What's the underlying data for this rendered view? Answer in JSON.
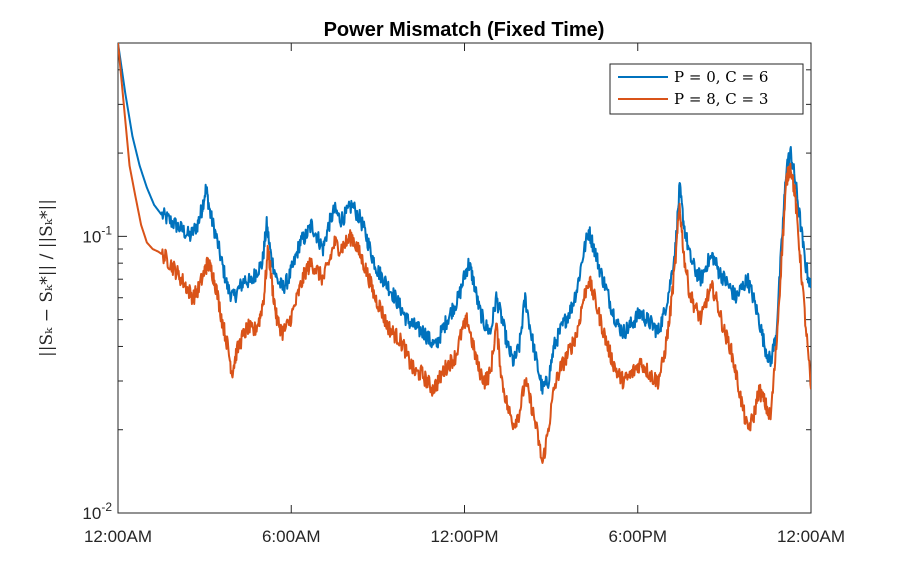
{
  "chart_data": {
    "type": "line",
    "title": "Power Mismatch (Fixed Time)",
    "xlabel": "",
    "ylabel": "||S_k − S*_k|| / ||S*_k||",
    "ylabel_display": "||Sₖ − Sₖ*|| / ||Sₖ*||",
    "yscale": "log",
    "ylim": [
      0.01,
      0.5
    ],
    "xlim": [
      0,
      24
    ],
    "x_unit": "hours",
    "x_ticks": [
      {
        "value": 0,
        "label": "12:00AM"
      },
      {
        "value": 6,
        "label": "6:00AM"
      },
      {
        "value": 12,
        "label": "12:00PM"
      },
      {
        "value": 18,
        "label": "6:00PM"
      },
      {
        "value": 24,
        "label": "12:00AM"
      }
    ],
    "y_ticks": [
      {
        "value": 0.01,
        "base": "10",
        "exp": "-2"
      },
      {
        "value": 0.1,
        "base": "10",
        "exp": "-1"
      }
    ],
    "legend_position": "top-right",
    "series": [
      {
        "name": "P = 0, C = 6",
        "color": "#0072BD",
        "points": [
          [
            0,
            0.5
          ],
          [
            0.25,
            0.33
          ],
          [
            0.5,
            0.23
          ],
          [
            0.75,
            0.18
          ],
          [
            1,
            0.15
          ],
          [
            1.25,
            0.13
          ],
          [
            1.5,
            0.12
          ],
          [
            1.75,
            0.115
          ],
          [
            2,
            0.11
          ],
          [
            2.25,
            0.105
          ],
          [
            2.5,
            0.1
          ],
          [
            2.75,
            0.11
          ],
          [
            2.9,
            0.125
          ],
          [
            3.05,
            0.15
          ],
          [
            3.2,
            0.12
          ],
          [
            3.4,
            0.1
          ],
          [
            3.6,
            0.08
          ],
          [
            3.8,
            0.065
          ],
          [
            4.0,
            0.06
          ],
          [
            4.2,
            0.065
          ],
          [
            4.4,
            0.07
          ],
          [
            4.6,
            0.068
          ],
          [
            4.8,
            0.075
          ],
          [
            5.0,
            0.08
          ],
          [
            5.15,
            0.11
          ],
          [
            5.3,
            0.085
          ],
          [
            5.5,
            0.07
          ],
          [
            5.7,
            0.065
          ],
          [
            5.9,
            0.07
          ],
          [
            6.1,
            0.08
          ],
          [
            6.3,
            0.095
          ],
          [
            6.5,
            0.1
          ],
          [
            6.7,
            0.11
          ],
          [
            6.9,
            0.1
          ],
          [
            7.1,
            0.09
          ],
          [
            7.3,
            0.11
          ],
          [
            7.5,
            0.125
          ],
          [
            7.7,
            0.115
          ],
          [
            7.9,
            0.12
          ],
          [
            8.1,
            0.13
          ],
          [
            8.4,
            0.115
          ],
          [
            8.6,
            0.1
          ],
          [
            8.8,
            0.085
          ],
          [
            9.0,
            0.075
          ],
          [
            9.2,
            0.07
          ],
          [
            9.4,
            0.065
          ],
          [
            9.6,
            0.06
          ],
          [
            9.8,
            0.055
          ],
          [
            10.0,
            0.05
          ],
          [
            10.2,
            0.048
          ],
          [
            10.4,
            0.046
          ],
          [
            10.6,
            0.045
          ],
          [
            10.8,
            0.042
          ],
          [
            11.0,
            0.04
          ],
          [
            11.2,
            0.045
          ],
          [
            11.4,
            0.05
          ],
          [
            11.6,
            0.055
          ],
          [
            11.8,
            0.06
          ],
          [
            12.0,
            0.072
          ],
          [
            12.15,
            0.08
          ],
          [
            12.3,
            0.07
          ],
          [
            12.5,
            0.055
          ],
          [
            12.7,
            0.048
          ],
          [
            12.9,
            0.045
          ],
          [
            13.1,
            0.06
          ],
          [
            13.3,
            0.05
          ],
          [
            13.5,
            0.04
          ],
          [
            13.7,
            0.035
          ],
          [
            13.9,
            0.04
          ],
          [
            14.1,
            0.06
          ],
          [
            14.3,
            0.045
          ],
          [
            14.5,
            0.035
          ],
          [
            14.7,
            0.028
          ],
          [
            14.9,
            0.03
          ],
          [
            15.1,
            0.04
          ],
          [
            15.3,
            0.045
          ],
          [
            15.5,
            0.05
          ],
          [
            15.7,
            0.055
          ],
          [
            15.9,
            0.065
          ],
          [
            16.1,
            0.085
          ],
          [
            16.3,
            0.105
          ],
          [
            16.5,
            0.09
          ],
          [
            16.7,
            0.075
          ],
          [
            16.9,
            0.065
          ],
          [
            17.1,
            0.055
          ],
          [
            17.3,
            0.048
          ],
          [
            17.5,
            0.045
          ],
          [
            17.7,
            0.047
          ],
          [
            17.9,
            0.05
          ],
          [
            18.1,
            0.053
          ],
          [
            18.3,
            0.05
          ],
          [
            18.5,
            0.048
          ],
          [
            18.7,
            0.045
          ],
          [
            18.9,
            0.052
          ],
          [
            19.1,
            0.065
          ],
          [
            19.3,
            0.09
          ],
          [
            19.45,
            0.15
          ],
          [
            19.6,
            0.11
          ],
          [
            19.8,
            0.085
          ],
          [
            20.0,
            0.075
          ],
          [
            20.2,
            0.07
          ],
          [
            20.4,
            0.08
          ],
          [
            20.6,
            0.085
          ],
          [
            20.8,
            0.075
          ],
          [
            21.0,
            0.07
          ],
          [
            21.2,
            0.065
          ],
          [
            21.4,
            0.06
          ],
          [
            21.6,
            0.065
          ],
          [
            21.8,
            0.07
          ],
          [
            22.0,
            0.06
          ],
          [
            22.2,
            0.05
          ],
          [
            22.4,
            0.04
          ],
          [
            22.6,
            0.035
          ],
          [
            22.8,
            0.045
          ],
          [
            23.0,
            0.1
          ],
          [
            23.15,
            0.18
          ],
          [
            23.3,
            0.2
          ],
          [
            23.45,
            0.16
          ],
          [
            23.6,
            0.12
          ],
          [
            23.8,
            0.08
          ],
          [
            24.0,
            0.065
          ]
        ]
      },
      {
        "name": "P = 8, C = 3",
        "color": "#D95319",
        "points": [
          [
            0,
            0.5
          ],
          [
            0.2,
            0.3
          ],
          [
            0.4,
            0.18
          ],
          [
            0.6,
            0.14
          ],
          [
            0.8,
            0.11
          ],
          [
            1.0,
            0.095
          ],
          [
            1.2,
            0.09
          ],
          [
            1.4,
            0.088
          ],
          [
            1.6,
            0.085
          ],
          [
            1.8,
            0.08
          ],
          [
            2.0,
            0.075
          ],
          [
            2.2,
            0.07
          ],
          [
            2.4,
            0.065
          ],
          [
            2.6,
            0.06
          ],
          [
            2.8,
            0.065
          ],
          [
            3.0,
            0.075
          ],
          [
            3.1,
            0.08
          ],
          [
            3.25,
            0.075
          ],
          [
            3.4,
            0.065
          ],
          [
            3.6,
            0.05
          ],
          [
            3.8,
            0.04
          ],
          [
            3.95,
            0.032
          ],
          [
            4.1,
            0.038
          ],
          [
            4.3,
            0.043
          ],
          [
            4.5,
            0.047
          ],
          [
            4.7,
            0.045
          ],
          [
            4.9,
            0.05
          ],
          [
            5.05,
            0.06
          ],
          [
            5.2,
            0.09
          ],
          [
            5.35,
            0.065
          ],
          [
            5.5,
            0.05
          ],
          [
            5.7,
            0.045
          ],
          [
            5.9,
            0.048
          ],
          [
            6.1,
            0.055
          ],
          [
            6.3,
            0.065
          ],
          [
            6.5,
            0.075
          ],
          [
            6.7,
            0.08
          ],
          [
            6.9,
            0.075
          ],
          [
            7.1,
            0.07
          ],
          [
            7.3,
            0.08
          ],
          [
            7.5,
            0.095
          ],
          [
            7.7,
            0.09
          ],
          [
            7.9,
            0.095
          ],
          [
            8.1,
            0.1
          ],
          [
            8.3,
            0.09
          ],
          [
            8.5,
            0.08
          ],
          [
            8.7,
            0.07
          ],
          [
            8.9,
            0.06
          ],
          [
            9.1,
            0.055
          ],
          [
            9.3,
            0.048
          ],
          [
            9.5,
            0.045
          ],
          [
            9.7,
            0.043
          ],
          [
            9.9,
            0.04
          ],
          [
            10.1,
            0.035
          ],
          [
            10.3,
            0.032
          ],
          [
            10.5,
            0.032
          ],
          [
            10.7,
            0.03
          ],
          [
            10.9,
            0.028
          ],
          [
            11.1,
            0.03
          ],
          [
            11.3,
            0.033
          ],
          [
            11.5,
            0.035
          ],
          [
            11.7,
            0.037
          ],
          [
            11.9,
            0.045
          ],
          [
            12.1,
            0.05
          ],
          [
            12.3,
            0.04
          ],
          [
            12.5,
            0.033
          ],
          [
            12.7,
            0.03
          ],
          [
            12.9,
            0.032
          ],
          [
            13.1,
            0.048
          ],
          [
            13.3,
            0.03
          ],
          [
            13.5,
            0.024
          ],
          [
            13.7,
            0.021
          ],
          [
            13.9,
            0.023
          ],
          [
            14.1,
            0.03
          ],
          [
            14.3,
            0.025
          ],
          [
            14.5,
            0.02
          ],
          [
            14.7,
            0.015
          ],
          [
            14.9,
            0.02
          ],
          [
            15.1,
            0.028
          ],
          [
            15.3,
            0.033
          ],
          [
            15.5,
            0.036
          ],
          [
            15.7,
            0.04
          ],
          [
            15.9,
            0.045
          ],
          [
            16.1,
            0.058
          ],
          [
            16.3,
            0.07
          ],
          [
            16.5,
            0.06
          ],
          [
            16.7,
            0.05
          ],
          [
            16.9,
            0.042
          ],
          [
            17.1,
            0.036
          ],
          [
            17.3,
            0.032
          ],
          [
            17.5,
            0.03
          ],
          [
            17.7,
            0.031
          ],
          [
            17.9,
            0.033
          ],
          [
            18.1,
            0.035
          ],
          [
            18.3,
            0.033
          ],
          [
            18.5,
            0.031
          ],
          [
            18.7,
            0.03
          ],
          [
            18.9,
            0.036
          ],
          [
            19.1,
            0.05
          ],
          [
            19.3,
            0.08
          ],
          [
            19.45,
            0.13
          ],
          [
            19.6,
            0.085
          ],
          [
            19.8,
            0.062
          ],
          [
            20.0,
            0.055
          ],
          [
            20.2,
            0.05
          ],
          [
            20.4,
            0.06
          ],
          [
            20.6,
            0.065
          ],
          [
            20.8,
            0.055
          ],
          [
            21.0,
            0.045
          ],
          [
            21.2,
            0.04
          ],
          [
            21.4,
            0.032
          ],
          [
            21.6,
            0.025
          ],
          [
            21.8,
            0.02
          ],
          [
            22.0,
            0.022
          ],
          [
            22.2,
            0.028
          ],
          [
            22.4,
            0.025
          ],
          [
            22.6,
            0.022
          ],
          [
            22.8,
            0.04
          ],
          [
            23.0,
            0.09
          ],
          [
            23.15,
            0.16
          ],
          [
            23.3,
            0.18
          ],
          [
            23.45,
            0.14
          ],
          [
            23.6,
            0.09
          ],
          [
            23.8,
            0.05
          ],
          [
            24.0,
            0.028
          ]
        ]
      }
    ]
  }
}
